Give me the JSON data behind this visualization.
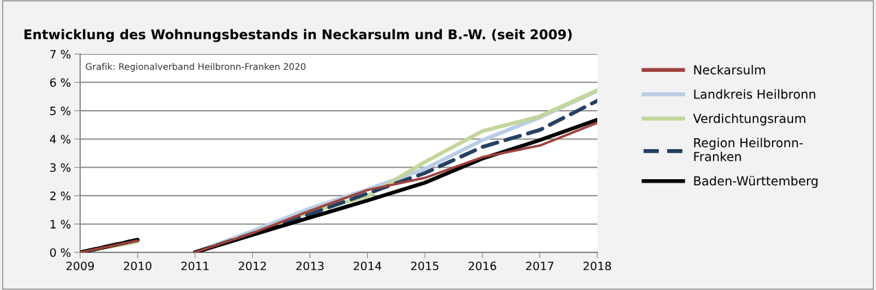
{
  "chart_data": {
    "type": "line",
    "title": "Entwicklung des Wohnungsbestands in Neckarsulm und B.-W. (seit 2009)",
    "annotations": [
      "Grafik: Regionalverband Heilbronn-Franken 2020"
    ],
    "x": [
      2009,
      2010,
      2010.5,
      2011,
      2012,
      2013,
      2014,
      2015,
      2016,
      2017,
      2018
    ],
    "xlim": [
      2009,
      2018
    ],
    "xticks": [
      2009,
      2010,
      2011,
      2012,
      2013,
      2014,
      2015,
      2016,
      2017,
      2018
    ],
    "ylim": [
      0,
      7
    ],
    "yticks": [
      {
        "value": 0,
        "label": "0 %"
      },
      {
        "value": 1,
        "label": "1 %"
      },
      {
        "value": 2,
        "label": "2 %"
      },
      {
        "value": 3,
        "label": "3 %"
      },
      {
        "value": 4,
        "label": "4 %"
      },
      {
        "value": 5,
        "label": "5 %"
      },
      {
        "value": 6,
        "label": "6 %"
      },
      {
        "value": 7,
        "label": "7 %"
      }
    ],
    "grid": "y",
    "legend": "right",
    "marker": "none",
    "series": [
      {
        "name": "Neckarsulm",
        "color": "#a0413c",
        "values": [
          0,
          0.42,
          null,
          0,
          0.68,
          1.47,
          2.2,
          2.63,
          3.36,
          3.77,
          4.57
        ]
      },
      {
        "name": "Landkreis Heilbronn",
        "color": "#b9cde5",
        "values": [
          0,
          0.43,
          null,
          0,
          0.75,
          1.55,
          2.22,
          2.95,
          3.96,
          4.76,
          5.7
        ]
      },
      {
        "name": "Verdichtungsraum",
        "color": "#c3d69b",
        "values": [
          0,
          0.38,
          null,
          0,
          0.66,
          1.43,
          1.98,
          3.19,
          4.28,
          4.8,
          5.72
        ]
      },
      {
        "name": "Region Heilbronn-\nFranken",
        "color": "#254061",
        "line_style": "dashed",
        "values": [
          0,
          0.45,
          null,
          0,
          0.66,
          1.35,
          2.08,
          2.8,
          3.72,
          4.32,
          5.35
        ]
      },
      {
        "name": "Baden-Württemberg",
        "color": "#000000",
        "values": [
          0,
          0.44,
          null,
          0,
          0.62,
          1.23,
          1.83,
          2.46,
          3.31,
          3.96,
          4.68
        ]
      }
    ]
  }
}
